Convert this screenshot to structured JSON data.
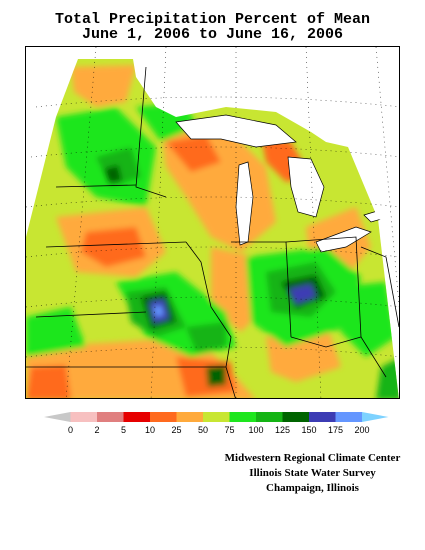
{
  "title": {
    "line1": "Total Precipitation Percent of Mean",
    "line2": "June 1, 2006 to June 16, 2006"
  },
  "legend": {
    "colors": [
      "#c8c8c8",
      "#f7c0c0",
      "#e07f7f",
      "#e60000",
      "#ff6a1e",
      "#ffaa3c",
      "#c8e632",
      "#1ee61e",
      "#14b414",
      "#006400",
      "#3c3cb4",
      "#6496ff",
      "#7dd2ff"
    ],
    "tick_labels": [
      "0",
      "2",
      "5",
      "10",
      "25",
      "50",
      "75",
      "100",
      "125",
      "150",
      "175",
      "200"
    ]
  },
  "credits": {
    "line1": "Midwestern Regional Climate Center",
    "line2": "Illinois State Water Survey",
    "line3": "Champaign, Illinois"
  },
  "colors": {
    "dry": "#ff6a1e",
    "below": "#ffaa3c",
    "near": "#c8e632",
    "above": "#1ee61e",
    "wet": "#14b414",
    "very_wet": "#006400",
    "extreme": "#3c3cb4",
    "extreme2": "#6496ff"
  }
}
